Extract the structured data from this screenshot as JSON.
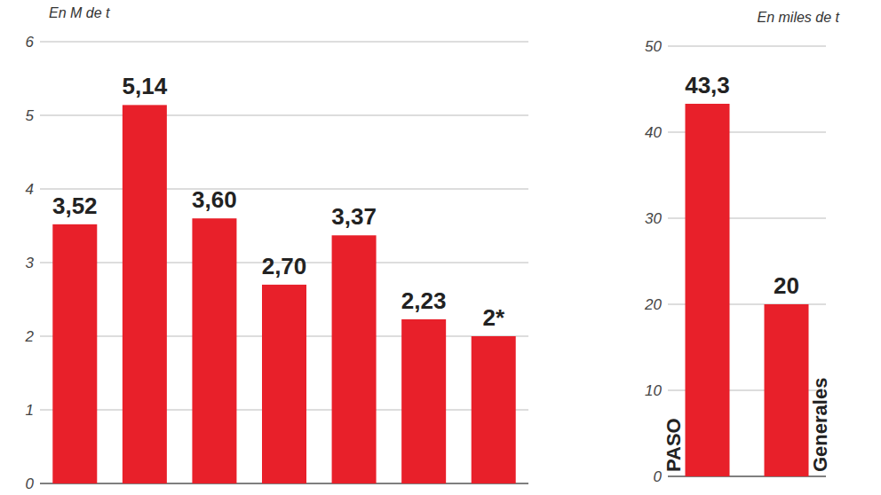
{
  "chart_data": [
    {
      "type": "bar",
      "ylabel": "En M de t",
      "categories": [
        null,
        null,
        null,
        null,
        null,
        null,
        null
      ],
      "values": [
        3.52,
        5.14,
        3.6,
        2.7,
        3.37,
        2.23,
        2
      ],
      "value_labels": [
        "3,52",
        "5,14",
        "3,60",
        "2,70",
        "3,37",
        "2,23",
        "2*"
      ],
      "color": "#e8202a",
      "ylim": [
        0,
        6
      ],
      "yticks": [
        0,
        1,
        2,
        3,
        4,
        5,
        6
      ],
      "grid": true,
      "data_labels": true
    },
    {
      "type": "bar",
      "ylabel": "En miles de t",
      "categories": [
        "PASO",
        "Generales"
      ],
      "values": [
        43.3,
        20
      ],
      "value_labels": [
        "43,3",
        "20"
      ],
      "color": "#e8202a",
      "ylim": [
        0,
        50
      ],
      "yticks": [
        0,
        10,
        20,
        30,
        40,
        50
      ],
      "grid": true,
      "data_labels": true
    }
  ]
}
